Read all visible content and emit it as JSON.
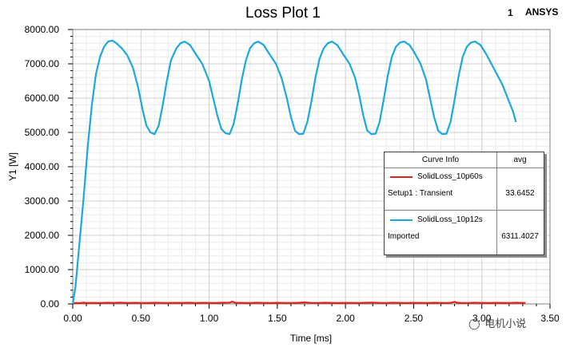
{
  "header": {
    "title": "Loss Plot 1",
    "corner_mark": "1",
    "brand": "ANSYS"
  },
  "chart_data": {
    "type": "line",
    "title": "Loss Plot 1",
    "xlabel": "Time [ms]",
    "ylabel": "Y1 [W]",
    "xlim": [
      0,
      3.5
    ],
    "ylim": [
      0,
      8000
    ],
    "x_ticks": [
      "0.00",
      "0.50",
      "1.00",
      "1.50",
      "2.00",
      "2.50",
      "3.00",
      "3.50"
    ],
    "y_ticks": [
      "0.00",
      "1000.00",
      "2000.00",
      "3000.00",
      "4000.00",
      "5000.00",
      "6000.00",
      "7000.00",
      "8000.00"
    ],
    "grid": true,
    "legend_position": "right",
    "legend_header": {
      "curve": "Curve Info",
      "stat": "avg"
    },
    "series": [
      {
        "name": "SolidLoss_10p60s",
        "setup": "Setup1 : Transient",
        "avg": "33.6452",
        "color": "#e0201b",
        "points": [
          [
            0.0,
            0
          ],
          [
            0.02,
            30
          ],
          [
            0.05,
            20
          ],
          [
            0.08,
            40
          ],
          [
            0.1,
            25
          ],
          [
            0.15,
            30
          ],
          [
            0.2,
            25
          ],
          [
            0.25,
            35
          ],
          [
            0.3,
            30
          ],
          [
            0.35,
            40
          ],
          [
            0.4,
            28
          ],
          [
            0.45,
            32
          ],
          [
            0.5,
            30
          ],
          [
            0.55,
            26
          ],
          [
            0.6,
            35
          ],
          [
            0.65,
            30
          ],
          [
            0.7,
            28
          ],
          [
            0.75,
            33
          ],
          [
            0.8,
            30
          ],
          [
            0.85,
            36
          ],
          [
            0.9,
            28
          ],
          [
            0.95,
            32
          ],
          [
            1.0,
            30
          ],
          [
            1.05,
            27
          ],
          [
            1.1,
            34
          ],
          [
            1.15,
            40
          ],
          [
            1.17,
            65
          ],
          [
            1.19,
            35
          ],
          [
            1.25,
            30
          ],
          [
            1.3,
            28
          ],
          [
            1.35,
            34
          ],
          [
            1.4,
            30
          ],
          [
            1.45,
            26
          ],
          [
            1.5,
            32
          ],
          [
            1.55,
            30
          ],
          [
            1.6,
            28
          ],
          [
            1.65,
            33
          ],
          [
            1.7,
            45
          ],
          [
            1.75,
            30
          ],
          [
            1.8,
            28
          ],
          [
            1.85,
            34
          ],
          [
            1.9,
            30
          ],
          [
            1.95,
            26
          ],
          [
            2.0,
            32
          ],
          [
            2.05,
            30
          ],
          [
            2.1,
            28
          ],
          [
            2.15,
            34
          ],
          [
            2.2,
            40
          ],
          [
            2.25,
            30
          ],
          [
            2.3,
            28
          ],
          [
            2.35,
            34
          ],
          [
            2.4,
            30
          ],
          [
            2.45,
            26
          ],
          [
            2.5,
            32
          ],
          [
            2.55,
            30
          ],
          [
            2.6,
            28
          ],
          [
            2.65,
            34
          ],
          [
            2.7,
            30
          ],
          [
            2.75,
            28
          ],
          [
            2.78,
            40
          ],
          [
            2.8,
            60
          ],
          [
            2.82,
            35
          ],
          [
            2.85,
            30
          ],
          [
            2.9,
            28
          ],
          [
            2.95,
            34
          ],
          [
            3.0,
            30
          ],
          [
            3.05,
            26
          ],
          [
            3.1,
            32
          ],
          [
            3.15,
            30
          ],
          [
            3.2,
            28
          ],
          [
            3.25,
            34
          ],
          [
            3.3,
            30
          ],
          [
            3.32,
            25
          ]
        ]
      },
      {
        "name": "SolidLoss_10p12s",
        "setup": "Imported",
        "avg": "6311.4027",
        "color": "#1ba8e0",
        "points": [
          [
            0.0,
            0
          ],
          [
            0.02,
            500
          ],
          [
            0.05,
            1800
          ],
          [
            0.08,
            3100
          ],
          [
            0.11,
            4600
          ],
          [
            0.14,
            5800
          ],
          [
            0.17,
            6700
          ],
          [
            0.2,
            7200
          ],
          [
            0.23,
            7500
          ],
          [
            0.26,
            7650
          ],
          [
            0.29,
            7680
          ],
          [
            0.32,
            7600
          ],
          [
            0.36,
            7450
          ],
          [
            0.4,
            7250
          ],
          [
            0.44,
            6900
          ],
          [
            0.48,
            6300
          ],
          [
            0.51,
            5700
          ],
          [
            0.54,
            5200
          ],
          [
            0.57,
            5000
          ],
          [
            0.6,
            4950
          ],
          [
            0.63,
            5200
          ],
          [
            0.66,
            5800
          ],
          [
            0.69,
            6500
          ],
          [
            0.72,
            7100
          ],
          [
            0.76,
            7450
          ],
          [
            0.79,
            7600
          ],
          [
            0.82,
            7650
          ],
          [
            0.86,
            7550
          ],
          [
            0.9,
            7300
          ],
          [
            0.95,
            7000
          ],
          [
            1.0,
            6500
          ],
          [
            1.03,
            6000
          ],
          [
            1.06,
            5500
          ],
          [
            1.09,
            5100
          ],
          [
            1.12,
            4980
          ],
          [
            1.15,
            4950
          ],
          [
            1.18,
            5250
          ],
          [
            1.21,
            5850
          ],
          [
            1.24,
            6550
          ],
          [
            1.27,
            7100
          ],
          [
            1.3,
            7450
          ],
          [
            1.33,
            7600
          ],
          [
            1.36,
            7650
          ],
          [
            1.4,
            7550
          ],
          [
            1.44,
            7300
          ],
          [
            1.49,
            7000
          ],
          [
            1.53,
            6600
          ],
          [
            1.57,
            6000
          ],
          [
            1.6,
            5450
          ],
          [
            1.63,
            5050
          ],
          [
            1.66,
            4950
          ],
          [
            1.69,
            4960
          ],
          [
            1.72,
            5300
          ],
          [
            1.75,
            5900
          ],
          [
            1.78,
            6600
          ],
          [
            1.81,
            7150
          ],
          [
            1.84,
            7450
          ],
          [
            1.87,
            7600
          ],
          [
            1.9,
            7650
          ],
          [
            1.94,
            7550
          ],
          [
            1.98,
            7300
          ],
          [
            2.03,
            7000
          ],
          [
            2.07,
            6600
          ],
          [
            2.1,
            6100
          ],
          [
            2.13,
            5500
          ],
          [
            2.16,
            5050
          ],
          [
            2.19,
            4950
          ],
          [
            2.22,
            4960
          ],
          [
            2.25,
            5300
          ],
          [
            2.28,
            5950
          ],
          [
            2.31,
            6650
          ],
          [
            2.34,
            7200
          ],
          [
            2.37,
            7500
          ],
          [
            2.4,
            7620
          ],
          [
            2.43,
            7650
          ],
          [
            2.47,
            7550
          ],
          [
            2.51,
            7300
          ],
          [
            2.55,
            7000
          ],
          [
            2.59,
            6550
          ],
          [
            2.62,
            6000
          ],
          [
            2.65,
            5450
          ],
          [
            2.68,
            5050
          ],
          [
            2.71,
            4950
          ],
          [
            2.74,
            4960
          ],
          [
            2.77,
            5300
          ],
          [
            2.8,
            5950
          ],
          [
            2.83,
            6650
          ],
          [
            2.86,
            7200
          ],
          [
            2.89,
            7500
          ],
          [
            2.92,
            7620
          ],
          [
            2.95,
            7650
          ],
          [
            2.99,
            7550
          ],
          [
            3.03,
            7300
          ],
          [
            3.07,
            7000
          ],
          [
            3.11,
            6700
          ],
          [
            3.15,
            6400
          ],
          [
            3.19,
            6000
          ],
          [
            3.23,
            5600
          ],
          [
            3.25,
            5300
          ]
        ]
      }
    ]
  },
  "watermark": {
    "icon": "wechat-icon",
    "text": "电机小说"
  }
}
